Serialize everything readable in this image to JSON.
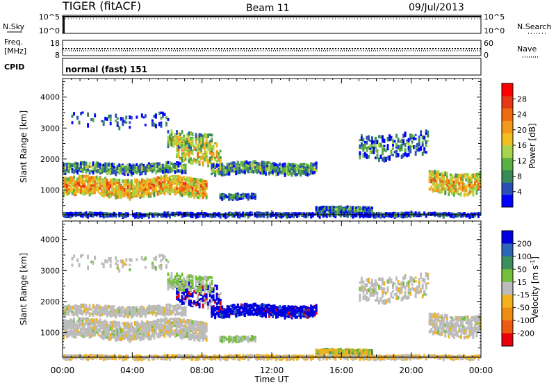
{
  "header": {
    "title": "TIGER (fitACF)",
    "beam": "Beam 11",
    "date": "09/Jul/2013"
  },
  "top_panels": {
    "nsky": {
      "label": "N.Sky",
      "ticks_left": [
        "10^5",
        "10^0"
      ],
      "ticks_right": [
        "10^5",
        "10^0"
      ],
      "right_label": "N.Search"
    },
    "freq": {
      "label": "Freq.",
      "unit": "[MHz]",
      "ticks_left": [
        "18",
        "8"
      ],
      "ticks_right": [
        "60",
        "0"
      ],
      "right_label": "Nave"
    },
    "cpid": {
      "label": "CPID",
      "text": "normal (fast) 151"
    }
  },
  "colors": {
    "power": [
      "#0000ff",
      "#2a4fb8",
      "#3a8a57",
      "#5aaf45",
      "#a8d54d",
      "#f0c020",
      "#f39a1c",
      "#f06a10",
      "#e83818",
      "#ff0000"
    ],
    "velocity": [
      "#0000e0",
      "#2d66b8",
      "#3e8f5e",
      "#74bf3e",
      "#bcbcbc",
      "#f2b21e",
      "#f08c10",
      "#ef5a12",
      "#e8000c"
    ]
  },
  "chart_data": [
    {
      "type": "heatmap",
      "name": "power",
      "ylabel": "Slant Range [km]",
      "ylim": [
        200,
        4600
      ],
      "yticks": [
        "1000",
        "2000",
        "3000",
        "4000"
      ],
      "colorbar_label": "Power [dB]",
      "colorbar_ticks": [
        "4",
        "8",
        "12",
        "16",
        "20",
        "24",
        "28"
      ],
      "colorbar_range": [
        0,
        32
      ]
    },
    {
      "type": "heatmap",
      "name": "velocity",
      "ylabel": "Slant Range [km]",
      "ylim": [
        200,
        4600
      ],
      "yticks": [
        "1000",
        "2000",
        "3000",
        "4000"
      ],
      "colorbar_label": "Velocity [m s",
      "colorbar_label_sup": "-1",
      "colorbar_label_end": "]",
      "colorbar_ticks": [
        "200",
        "100",
        "50",
        "15",
        "-15",
        "-50",
        "-100",
        "-200"
      ]
    }
  ],
  "xaxis": {
    "label": "Time UT",
    "ticks": [
      "00:00",
      "04:00",
      "08:00",
      "12:00",
      "16:00",
      "20:00",
      "00:00"
    ],
    "range_hours": [
      0,
      24
    ]
  }
}
